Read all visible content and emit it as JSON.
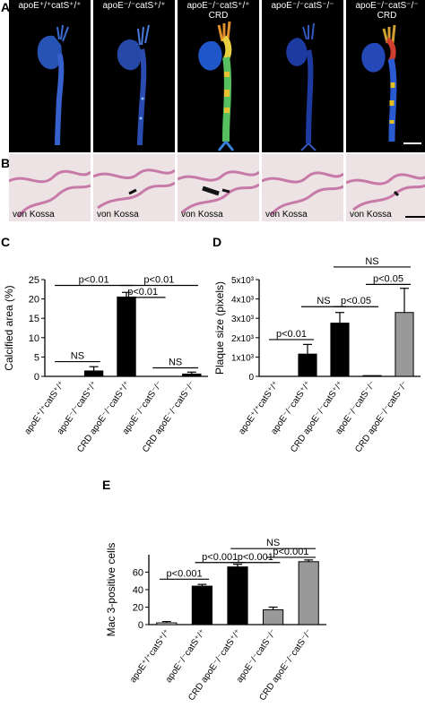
{
  "panel_labels": {
    "A": "A",
    "B": "B",
    "C": "C",
    "D": "D",
    "E": "E"
  },
  "panel_a": {
    "titles": [
      {
        "line1": "apoE⁺/⁺catS⁺/⁺",
        "line2": ""
      },
      {
        "line1": "apoE⁻/⁻catS⁺/⁺",
        "line2": ""
      },
      {
        "line1": "apoE⁻/⁻catS⁺/⁺",
        "line2": "CRD"
      },
      {
        "line1": "apoE⁻/⁻catS⁻/⁻",
        "line2": ""
      },
      {
        "line1": "apoE⁻/⁻catS⁻/⁻",
        "line2": "CRD"
      }
    ]
  },
  "panel_b": {
    "stain_label": "von Kossa"
  },
  "chart_data": [
    {
      "type": "bar",
      "panel": "C",
      "ylabel": "Calcified area (%)",
      "ylim": [
        0,
        25
      ],
      "yticks": [
        "0",
        "5",
        "10",
        "15",
        "20",
        "25"
      ],
      "categories": [
        "apoE⁺/⁺catS⁺/⁺",
        "apoE⁻/⁻catS⁺/⁺",
        "CRD apoE⁻/⁻catS⁺/⁺",
        "apoE⁻/⁻catS⁻/⁻",
        "CRD apoE⁻/⁻catS⁻/⁻"
      ],
      "values": [
        0,
        1.4,
        20.5,
        0,
        0.6
      ],
      "errors": [
        0,
        1.1,
        1.2,
        0,
        0.5
      ],
      "colors": [
        "#000000",
        "#000000",
        "#000000",
        "#000000",
        "#000000"
      ],
      "annotations": [
        {
          "text": "p<0.01",
          "from": 0,
          "to": 2,
          "level": 23.5
        },
        {
          "text": "p<0.01",
          "from": 2,
          "to": 4,
          "level": 23.5
        },
        {
          "text": "p<0.01",
          "from": 2,
          "to": 3,
          "level": 20.4
        },
        {
          "text": "NS",
          "from": 0,
          "to": 1,
          "level": 3.8
        },
        {
          "text": "NS",
          "from": 3,
          "to": 4,
          "level": 2.2
        }
      ]
    },
    {
      "type": "bar",
      "panel": "D",
      "ylabel": "Plaque size (pixels)",
      "ylim": [
        0,
        5000
      ],
      "yticks": [
        "0",
        "1x10³",
        "2x10³",
        "3x10³",
        "4x10³",
        "5x10³"
      ],
      "categories": [
        "apoE⁺/⁺catS⁺/⁺",
        "apoE⁻/⁻catS⁺/⁺",
        "CRD apoE⁻/⁻catS⁺/⁺",
        "apoE⁻/⁻catS⁻/⁻",
        "CRD apoE⁻/⁻catS⁻/⁻"
      ],
      "values": [
        0,
        1150,
        2750,
        40,
        3300
      ],
      "errors": [
        0,
        500,
        550,
        0,
        1250
      ],
      "colors": [
        "#000000",
        "#000000",
        "#000000",
        "#000000",
        "#999999"
      ],
      "annotations": [
        {
          "text": "p<0.01",
          "from": 0,
          "to": 1,
          "level": 1900
        },
        {
          "text": "NS",
          "from": 1,
          "to": 2,
          "level": 3600
        },
        {
          "text": "p<0.05",
          "from": 2,
          "to": 3,
          "level": 3600
        },
        {
          "text": "p<0.05",
          "from": 3,
          "to": 4,
          "level": 4750
        },
        {
          "text": "NS",
          "from": 2,
          "to": 4,
          "level": 5650
        }
      ]
    },
    {
      "type": "bar",
      "panel": "E",
      "ylabel": "Mac 3-positive cells",
      "ylim": [
        0,
        80
      ],
      "yticks": [
        "0",
        "20",
        "40",
        "60"
      ],
      "categories": [
        "apoE⁺/⁺catS⁺/⁺",
        "apoE⁻/⁻catS⁺/⁺",
        "CRD apoE⁻/⁻catS⁺/⁺",
        "apoE⁻/⁻catS⁻/⁻",
        "CRD apoE⁻/⁻catS⁻/⁻"
      ],
      "values": [
        2,
        44,
        66,
        17,
        72
      ],
      "errors": [
        1.5,
        2,
        3,
        3,
        2
      ],
      "colors": [
        "#ffffff",
        "#000000",
        "#000000",
        "#999999",
        "#999999"
      ],
      "annotations": [
        {
          "text": "p<0.001",
          "from": 0,
          "to": 1,
          "level": 52
        },
        {
          "text": "p<0.001",
          "from": 1,
          "to": 2,
          "level": 71
        },
        {
          "text": "p<0.001",
          "from": 2,
          "to": 3,
          "level": 71
        },
        {
          "text": "p<0.001",
          "from": 3,
          "to": 4,
          "level": 77
        },
        {
          "text": "NS",
          "from": 2,
          "to": 4,
          "level": 87
        }
      ]
    }
  ]
}
